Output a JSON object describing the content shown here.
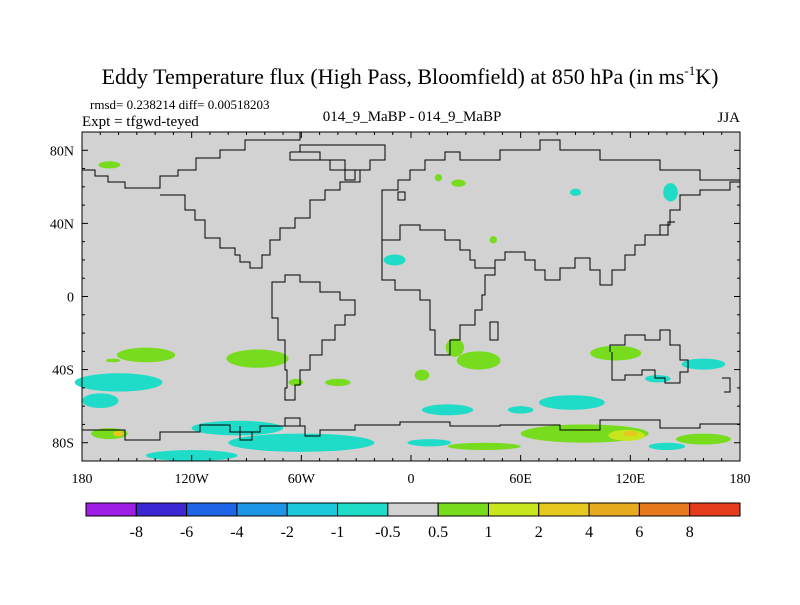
{
  "chart_data": {
    "type": "map-contour",
    "title": "Eddy Temperature flux (High Pass, Bloomfield) at 850 hPa (in ms",
    "title_sup": "-1",
    "title_tail": "K)",
    "stats_text": "rmsd= 0.238214 diff= 0.00518203",
    "expt_text": "Expt = tfgwd-teyed",
    "case_text": "014_9_MaBP - 014_9_MaBP",
    "season_text": "JJA",
    "x_range": [
      -180,
      180
    ],
    "y_range": [
      -90,
      90
    ],
    "x_ticks": [
      {
        "value": -180,
        "label": "180"
      },
      {
        "value": -120,
        "label": "120W"
      },
      {
        "value": -60,
        "label": "60W"
      },
      {
        "value": 0,
        "label": "0"
      },
      {
        "value": 60,
        "label": "60E"
      },
      {
        "value": 120,
        "label": "120E"
      },
      {
        "value": 180,
        "label": "180"
      }
    ],
    "y_ticks": [
      {
        "value": 80,
        "label": "80N"
      },
      {
        "value": 40,
        "label": "40N"
      },
      {
        "value": 0,
        "label": "0"
      },
      {
        "value": -40,
        "label": "40S"
      },
      {
        "value": -80,
        "label": "80S"
      }
    ],
    "background_color": "#d2d2d2",
    "legend": {
      "colors": [
        "#9e1ee6",
        "#3c28d2",
        "#1e64e6",
        "#1e96e6",
        "#1ec8dc",
        "#1edcc8",
        "#d2d2d2",
        "#78dc1e",
        "#c8e61e",
        "#e6c81e",
        "#e6aa1e",
        "#e6781e",
        "#e63c1e"
      ],
      "labels": [
        "-8",
        "-6",
        "-4",
        "-2",
        "-1",
        "-0.5",
        "0.5",
        "1",
        "2",
        "4",
        "6",
        "8"
      ]
    },
    "regions": [
      {
        "level": "0.5 to 1",
        "color": "#78dc1e",
        "lon": -165,
        "lat": 72,
        "rx": 6,
        "ry": 2
      },
      {
        "level": "0.5 to 1",
        "color": "#78dc1e",
        "lon": 15,
        "lat": 65,
        "rx": 2,
        "ry": 2
      },
      {
        "level": "0.5 to 1",
        "color": "#78dc1e",
        "lon": 26,
        "lat": 62,
        "rx": 4,
        "ry": 2
      },
      {
        "level": "-1 to -0.5",
        "color": "#1edcc8",
        "lon": -9,
        "lat": 20,
        "rx": 6,
        "ry": 3
      },
      {
        "level": "0.5 to 1",
        "color": "#78dc1e",
        "lon": 45,
        "lat": 31,
        "rx": 2,
        "ry": 2
      },
      {
        "level": "-1 to -0.5",
        "color": "#1edcc8",
        "lon": 142,
        "lat": 57,
        "rx": 4,
        "ry": 5
      },
      {
        "level": "-1 to -0.5",
        "color": "#1edcc8",
        "lon": 90,
        "lat": 57,
        "rx": 3,
        "ry": 2
      },
      {
        "level": "0.5 to 1",
        "color": "#78dc1e",
        "lon": -145,
        "lat": -32,
        "rx": 16,
        "ry": 4
      },
      {
        "level": "0.5 to 1",
        "color": "#78dc1e",
        "lon": -163,
        "lat": -35,
        "rx": 4,
        "ry": 1
      },
      {
        "level": "0.5 to 1",
        "color": "#78dc1e",
        "lon": -84,
        "lat": -34,
        "rx": 17,
        "ry": 5
      },
      {
        "level": "0.5 to 1",
        "color": "#78dc1e",
        "lon": -40,
        "lat": -47,
        "rx": 7,
        "ry": 2
      },
      {
        "level": "0.5 to 1",
        "color": "#78dc1e",
        "lon": -63,
        "lat": -47,
        "rx": 4,
        "ry": 2
      },
      {
        "level": "0.5 to 1",
        "color": "#78dc1e",
        "lon": 37,
        "lat": -35,
        "rx": 12,
        "ry": 5
      },
      {
        "level": "0.5 to 1",
        "color": "#78dc1e",
        "lon": 24,
        "lat": -28,
        "rx": 5,
        "ry": 5
      },
      {
        "level": "0.5 to 1",
        "color": "#78dc1e",
        "lon": 6,
        "lat": -43,
        "rx": 4,
        "ry": 3
      },
      {
        "level": "0.5 to 1",
        "color": "#78dc1e",
        "lon": 112,
        "lat": -31,
        "rx": 14,
        "ry": 4
      },
      {
        "level": "-1 to -0.5",
        "color": "#1edcc8",
        "lon": 160,
        "lat": -37,
        "rx": 12,
        "ry": 3
      },
      {
        "level": "-1 to -0.5",
        "color": "#1edcc8",
        "lon": 135,
        "lat": -45,
        "rx": 7,
        "ry": 2
      },
      {
        "level": "-1 to -0.5",
        "color": "#1edcc8",
        "lon": -160,
        "lat": -47,
        "rx": 24,
        "ry": 5
      },
      {
        "level": "-1 to -0.5",
        "color": "#1edcc8",
        "lon": -170,
        "lat": -57,
        "rx": 10,
        "ry": 4
      },
      {
        "level": "-1 to -0.5",
        "color": "#1edcc8",
        "lon": 20,
        "lat": -62,
        "rx": 14,
        "ry": 3
      },
      {
        "level": "-1 to -0.5",
        "color": "#1edcc8",
        "lon": 88,
        "lat": -58,
        "rx": 18,
        "ry": 4
      },
      {
        "level": "-1 to -0.5",
        "color": "#1edcc8",
        "lon": 60,
        "lat": -62,
        "rx": 7,
        "ry": 2
      },
      {
        "level": "-1 to -0.5",
        "color": "#1edcc8",
        "lon": -95,
        "lat": -72,
        "rx": 25,
        "ry": 4
      },
      {
        "level": "-1 to -0.5",
        "color": "#1edcc8",
        "lon": -60,
        "lat": -80,
        "rx": 40,
        "ry": 5
      },
      {
        "level": "-1 to -0.5",
        "color": "#1edcc8",
        "lon": -120,
        "lat": -87,
        "rx": 25,
        "ry": 3
      },
      {
        "level": "-1 to -0.5",
        "color": "#1edcc8",
        "lon": 10,
        "lat": -80,
        "rx": 12,
        "ry": 2
      },
      {
        "level": "0.5 to 1",
        "color": "#78dc1e",
        "lon": -165,
        "lat": -75,
        "rx": 10,
        "ry": 3
      },
      {
        "level": "0.5 to 1",
        "color": "#78dc1e",
        "lon": 95,
        "lat": -75,
        "rx": 35,
        "ry": 5
      },
      {
        "level": "0.5 to 1",
        "color": "#78dc1e",
        "lon": 160,
        "lat": -78,
        "rx": 15,
        "ry": 3
      },
      {
        "level": "0.5 to 1",
        "color": "#78dc1e",
        "lon": 40,
        "lat": -82,
        "rx": 20,
        "ry": 2
      },
      {
        "level": "1 to 2",
        "color": "#c8e61e",
        "lon": 118,
        "lat": -76,
        "rx": 10,
        "ry": 3
      },
      {
        "level": "2 to 4",
        "color": "#e6c81e",
        "lon": 120,
        "lat": -75,
        "rx": 4,
        "ry": 1.5
      },
      {
        "level": "2 to 4",
        "color": "#e6c81e",
        "lon": -160,
        "lat": -75,
        "rx": 3,
        "ry": 1.5
      },
      {
        "level": "-1 to -0.5",
        "color": "#1edcc8",
        "lon": 140,
        "lat": -82,
        "rx": 10,
        "ry": 2
      }
    ]
  }
}
